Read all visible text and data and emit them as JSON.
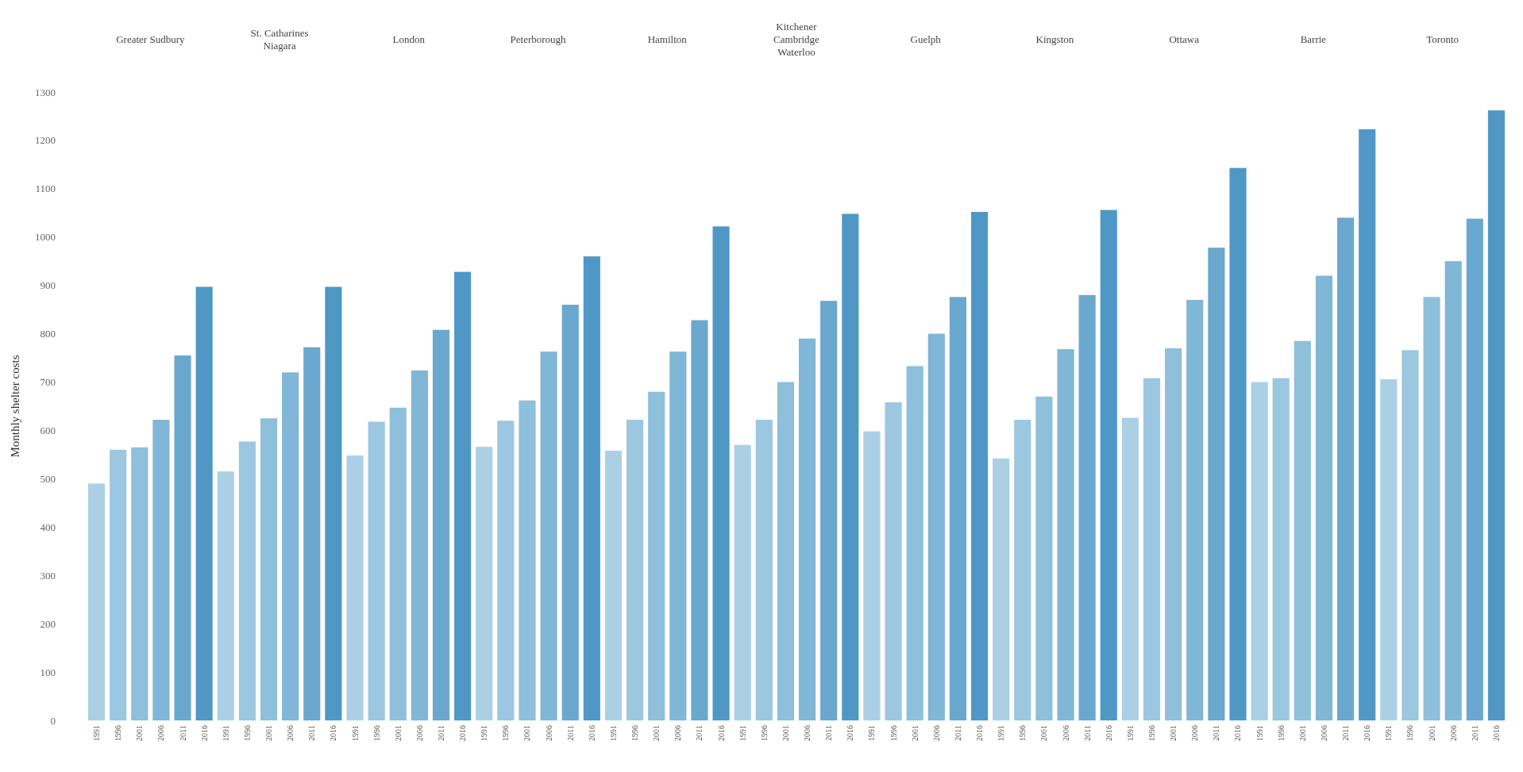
{
  "chart_data": {
    "type": "bar",
    "ylabel": "Monthly shelter costs",
    "categories": [
      "Greater Sudbury",
      "St. Catharines Niagara",
      "London",
      "Peterborough",
      "Hamilton",
      "Kitchener Cambridge Waterloo",
      "Guelph",
      "Kingston",
      "Ottawa",
      "Barrie",
      "Toronto"
    ],
    "series": [
      {
        "name": "1991",
        "color": "#abd0e5",
        "values": [
          490,
          515,
          548,
          566,
          558,
          570,
          598,
          542,
          626,
          700,
          706
        ]
      },
      {
        "name": "1996",
        "color": "#9cc7e0",
        "values": [
          560,
          577,
          618,
          620,
          622,
          622,
          658,
          622,
          708,
          708,
          766
        ]
      },
      {
        "name": "2001",
        "color": "#8ebfdb",
        "values": [
          565,
          625,
          647,
          662,
          680,
          700,
          733,
          670,
          770,
          785,
          876
        ]
      },
      {
        "name": "2006",
        "color": "#80b6d6",
        "values": [
          622,
          720,
          724,
          763,
          763,
          790,
          800,
          768,
          870,
          920,
          950
        ]
      },
      {
        "name": "2011",
        "color": "#6aa8cf",
        "values": [
          755,
          772,
          808,
          860,
          828,
          868,
          876,
          880,
          978,
          1040,
          1038
        ]
      },
      {
        "name": "2016",
        "color": "#4f98c6",
        "values": [
          897,
          897,
          928,
          960,
          1022,
          1048,
          1052,
          1056,
          1143,
          1223,
          1262
        ]
      }
    ],
    "ylim": [
      0,
      1300
    ],
    "yticks": [
      0,
      100,
      200,
      300,
      400,
      500,
      600,
      700,
      800,
      900,
      1000,
      1100,
      1200,
      1300
    ],
    "legend": false,
    "grid": false
  }
}
